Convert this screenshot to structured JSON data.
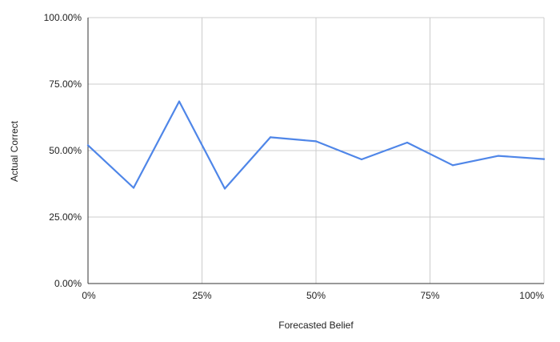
{
  "chart_data": {
    "type": "line",
    "title": "",
    "xlabel": "Forecasted Belief",
    "ylabel": "Actual Correct",
    "xlim": [
      0,
      1
    ],
    "ylim": [
      0,
      1
    ],
    "grid": true,
    "legend": "none",
    "x_ticks": [
      {
        "value": 0,
        "label": "0%"
      },
      {
        "value": 0.25,
        "label": "25%"
      },
      {
        "value": 0.5,
        "label": "50%"
      },
      {
        "value": 0.75,
        "label": "75%"
      },
      {
        "value": 1,
        "label": "100%"
      }
    ],
    "y_ticks": [
      {
        "value": 0,
        "label": "0.00%"
      },
      {
        "value": 0.25,
        "label": "25.00%"
      },
      {
        "value": 0.5,
        "label": "50.00%"
      },
      {
        "value": 0.75,
        "label": "75.00%"
      },
      {
        "value": 1,
        "label": "100.00%"
      }
    ],
    "series": [
      {
        "color": "#4f86e8",
        "x": [
          0,
          0.1,
          0.2,
          0.3,
          0.4,
          0.5,
          0.6,
          0.7,
          0.8,
          0.9,
          1.0
        ],
        "y": [
          0.52,
          0.36,
          0.685,
          0.357,
          0.55,
          0.535,
          0.467,
          0.53,
          0.445,
          0.48,
          0.468
        ]
      }
    ]
  }
}
